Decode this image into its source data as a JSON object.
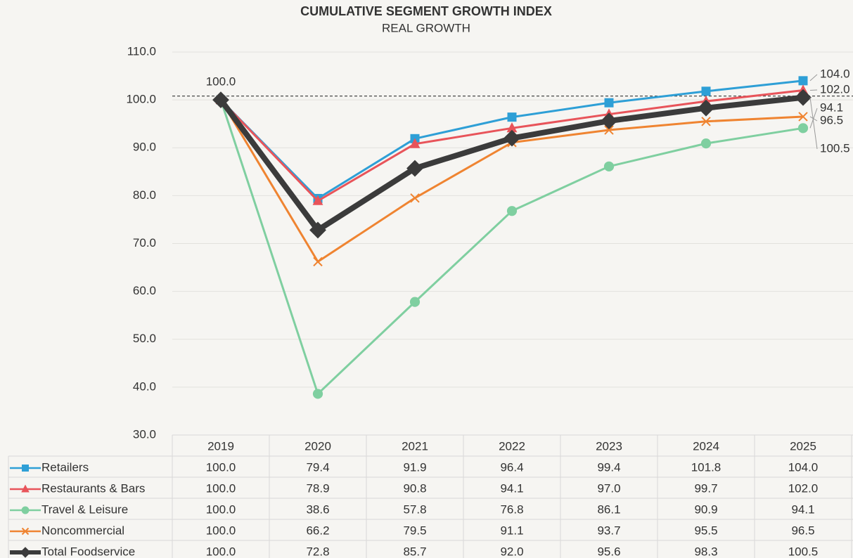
{
  "chart_data": {
    "type": "line",
    "title": "CUMULATIVE SEGMENT GROWTH INDEX",
    "subtitle": "REAL GROWTH",
    "categories": [
      "2019",
      "2020",
      "2021",
      "2022",
      "2023",
      "2024",
      "2025"
    ],
    "ylim": [
      30,
      110
    ],
    "yticks": [
      {
        "value": 30,
        "label": "30.0"
      },
      {
        "value": 40,
        "label": "40.0"
      },
      {
        "value": 50,
        "label": "50.0"
      },
      {
        "value": 60,
        "label": "60.0"
      },
      {
        "value": 70,
        "label": "70.0"
      },
      {
        "value": 80,
        "label": "80.0"
      },
      {
        "value": 90,
        "label": "90.0"
      },
      {
        "value": 100,
        "label": "100.0"
      },
      {
        "value": 110,
        "label": "110.0"
      }
    ],
    "grid": true,
    "reference_line": 100.8,
    "series": [
      {
        "name": "Retailers",
        "color": "#2e9fd6",
        "marker": "square",
        "values": [
          100,
          79.4,
          91.9,
          96.4,
          99.4,
          101.8,
          104.0
        ],
        "value_labels": [
          "100.0",
          "79.4",
          "91.9",
          "96.4",
          "99.4",
          "101.8",
          "104.0"
        ]
      },
      {
        "name": "Restaurants & Bars",
        "color": "#e8545a",
        "marker": "triangle",
        "values": [
          100,
          78.9,
          90.8,
          94.1,
          97.0,
          99.7,
          102.0
        ],
        "value_labels": [
          "100.0",
          "78.9",
          "90.8",
          "94.1",
          "97.0",
          "99.7",
          "102.0"
        ]
      },
      {
        "name": "Travel & Leisure",
        "color": "#7fcfa0",
        "marker": "circle",
        "values": [
          100,
          38.6,
          57.8,
          76.8,
          86.1,
          90.9,
          94.1
        ],
        "value_labels": [
          "100.0",
          "38.6",
          "57.8",
          "76.8",
          "86.1",
          "90.9",
          "94.1"
        ]
      },
      {
        "name": "Noncommercial",
        "color": "#ef8431",
        "marker": "x",
        "values": [
          100,
          66.2,
          79.5,
          91.1,
          93.7,
          95.5,
          96.5
        ],
        "value_labels": [
          "100.0",
          "66.2",
          "79.5",
          "91.1",
          "93.7",
          "95.5",
          "96.5"
        ]
      },
      {
        "name": "Total Foodservice",
        "color": "#3b3b3b",
        "marker": "diamond",
        "values": [
          100,
          72.8,
          85.7,
          92.0,
          95.6,
          98.3,
          100.5
        ],
        "value_labels": [
          "100.0",
          "72.8",
          "85.7",
          "92.0",
          "95.6",
          "98.3",
          "100.5"
        ]
      }
    ]
  }
}
